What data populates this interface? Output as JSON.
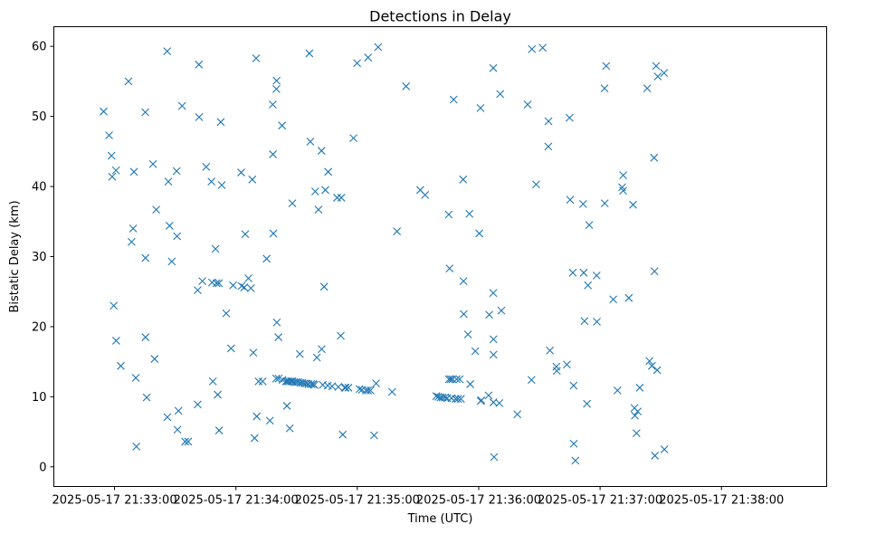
{
  "chart_data": {
    "type": "scatter",
    "title": "Detections in Delay",
    "xlabel": "Time (UTC)",
    "ylabel": "Bistatic Delay (km)",
    "marker": "x",
    "color": "#1f77b4",
    "xlim": [
      -30,
      352
    ],
    "ylim": [
      -2.8,
      62.8
    ],
    "x_unit": "seconds after 2025-05-17 21:33:00",
    "xticks": [
      {
        "value": 0,
        "label": "2025-05-17 21:33:00"
      },
      {
        "value": 60,
        "label": "2025-05-17 21:34:00"
      },
      {
        "value": 120,
        "label": "2025-05-17 21:35:00"
      },
      {
        "value": 180,
        "label": "2025-05-17 21:36:00"
      },
      {
        "value": 240,
        "label": "2025-05-17 21:37:00"
      },
      {
        "value": 300,
        "label": "2025-05-17 21:38:00"
      }
    ],
    "yticks": [
      {
        "value": 0,
        "label": "0"
      },
      {
        "value": 10,
        "label": "10"
      },
      {
        "value": 20,
        "label": "20"
      },
      {
        "value": 30,
        "label": "30"
      },
      {
        "value": 40,
        "label": "40"
      },
      {
        "value": 50,
        "label": "50"
      },
      {
        "value": 60,
        "label": "60"
      }
    ],
    "points": [
      [
        -5.4,
        50.7
      ],
      [
        -2.7,
        47.3
      ],
      [
        -1.5,
        44.4
      ],
      [
        -1.2,
        41.4
      ],
      [
        0.7,
        42.3
      ],
      [
        -0.4,
        23.0
      ],
      [
        0.8,
        18.0
      ],
      [
        3.1,
        14.4
      ],
      [
        6.9,
        55.0
      ],
      [
        8.4,
        32.1
      ],
      [
        9.2,
        34.0
      ],
      [
        9.6,
        42.1
      ],
      [
        10.5,
        12.7
      ],
      [
        10.8,
        2.9
      ],
      [
        15.2,
        50.6
      ],
      [
        15.3,
        29.8
      ],
      [
        15.3,
        18.5
      ],
      [
        15.9,
        9.9
      ],
      [
        19.0,
        43.2
      ],
      [
        19.8,
        15.4
      ],
      [
        20.6,
        36.7
      ],
      [
        26.0,
        59.3
      ],
      [
        26.1,
        7.1
      ],
      [
        26.6,
        40.7
      ],
      [
        27.2,
        34.4
      ],
      [
        28.3,
        29.3
      ],
      [
        30.7,
        42.2
      ],
      [
        30.9,
        32.9
      ],
      [
        31.1,
        5.3
      ],
      [
        31.6,
        8.0
      ],
      [
        33.4,
        51.5
      ],
      [
        34.9,
        3.6
      ],
      [
        36.4,
        3.6
      ],
      [
        41.1,
        8.9
      ],
      [
        41.1,
        25.2
      ],
      [
        41.8,
        49.9
      ],
      [
        41.7,
        57.4
      ],
      [
        43.4,
        26.5
      ],
      [
        45.3,
        42.8
      ],
      [
        47.9,
        40.7
      ],
      [
        48.2,
        26.3
      ],
      [
        48.6,
        12.2
      ],
      [
        49.9,
        31.1
      ],
      [
        50.4,
        26.2
      ],
      [
        51.0,
        10.3
      ],
      [
        51.6,
        26.2
      ],
      [
        51.7,
        5.2
      ],
      [
        52.5,
        49.2
      ],
      [
        53.0,
        40.2
      ],
      [
        55.2,
        21.9
      ],
      [
        57.6,
        16.9
      ],
      [
        58.6,
        25.9
      ],
      [
        62.6,
        42.0
      ],
      [
        62.8,
        25.8
      ],
      [
        64.1,
        25.6
      ],
      [
        64.6,
        33.2
      ],
      [
        66.2,
        26.9
      ],
      [
        67.4,
        25.5
      ],
      [
        68.1,
        41.0
      ],
      [
        68.6,
        16.3
      ],
      [
        69.2,
        4.1
      ],
      [
        70.0,
        58.3
      ],
      [
        70.3,
        7.2
      ],
      [
        71.2,
        12.2
      ],
      [
        73.2,
        12.2
      ],
      [
        75.2,
        29.7
      ],
      [
        76.8,
        6.6
      ],
      [
        78.5,
        33.3
      ],
      [
        78.2,
        51.7
      ],
      [
        78.3,
        44.6
      ],
      [
        80.1,
        55.1
      ],
      [
        80.0,
        53.9
      ],
      [
        80.2,
        20.6
      ],
      [
        81.0,
        18.5
      ],
      [
        79.9,
        12.6
      ],
      [
        81.1,
        12.6
      ],
      [
        82.8,
        48.7
      ],
      [
        83.0,
        12.4
      ],
      [
        84.7,
        12.2
      ],
      [
        85.4,
        12.2
      ],
      [
        85.2,
        8.7
      ],
      [
        86.2,
        12.2
      ],
      [
        86.6,
        5.5
      ],
      [
        87.2,
        12.2
      ],
      [
        87.9,
        37.6
      ],
      [
        87.9,
        12.2
      ],
      [
        88.8,
        12.1
      ],
      [
        89.8,
        12.1
      ],
      [
        90.8,
        12.1
      ],
      [
        91.6,
        16.1
      ],
      [
        91.8,
        12.0
      ],
      [
        92.8,
        12.0
      ],
      [
        93.8,
        11.9
      ],
      [
        94.8,
        11.9
      ],
      [
        95.8,
        11.8
      ],
      [
        96.3,
        59.0
      ],
      [
        96.8,
        46.4
      ],
      [
        97.2,
        11.8
      ],
      [
        98.2,
        11.8
      ],
      [
        98.8,
        11.7
      ],
      [
        99.2,
        39.3
      ],
      [
        100.0,
        15.6
      ],
      [
        100.8,
        36.7
      ],
      [
        102.3,
        45.1
      ],
      [
        102.4,
        16.8
      ],
      [
        102.9,
        11.7
      ],
      [
        103.6,
        25.7
      ],
      [
        104.2,
        39.5
      ],
      [
        105.4,
        11.6
      ],
      [
        105.6,
        42.1
      ],
      [
        107.5,
        11.5
      ],
      [
        110.0,
        38.4
      ],
      [
        110.6,
        11.4
      ],
      [
        112.1,
        38.4
      ],
      [
        111.8,
        18.7
      ],
      [
        112.8,
        4.6
      ],
      [
        113.8,
        11.3
      ],
      [
        114.2,
        11.3
      ],
      [
        115.6,
        11.3
      ],
      [
        118.1,
        46.9
      ],
      [
        119.9,
        57.6
      ],
      [
        121.1,
        11.1
      ],
      [
        122.3,
        11.0
      ],
      [
        124.3,
        10.9
      ],
      [
        125.3,
        10.9
      ],
      [
        125.3,
        58.4
      ],
      [
        126.5,
        10.9
      ],
      [
        128.3,
        4.5
      ],
      [
        129.3,
        11.9
      ],
      [
        130.3,
        59.9
      ],
      [
        137.2,
        10.7
      ],
      [
        139.6,
        33.6
      ],
      [
        144.1,
        54.3
      ],
      [
        151.1,
        39.5
      ],
      [
        153.5,
        38.8
      ],
      [
        159.0,
        10.1
      ],
      [
        160.0,
        10.0
      ],
      [
        161.1,
        9.9
      ],
      [
        162.2,
        9.9
      ],
      [
        163.4,
        9.9
      ],
      [
        164.4,
        9.8
      ],
      [
        165.2,
        36.0
      ],
      [
        165.3,
        12.5
      ],
      [
        165.6,
        28.3
      ],
      [
        166.6,
        9.8
      ],
      [
        166.2,
        12.5
      ],
      [
        167.1,
        12.5
      ],
      [
        167.6,
        52.4
      ],
      [
        168.6,
        9.7
      ],
      [
        169.1,
        12.5
      ],
      [
        169.8,
        9.7
      ],
      [
        170.6,
        12.5
      ],
      [
        171.2,
        9.7
      ],
      [
        172.3,
        41.0
      ],
      [
        172.5,
        26.5
      ],
      [
        172.6,
        21.8
      ],
      [
        174.7,
        18.9
      ],
      [
        175.4,
        36.1
      ],
      [
        175.8,
        11.8
      ],
      [
        178.3,
        16.5
      ],
      [
        180.3,
        33.3
      ],
      [
        180.9,
        51.2
      ],
      [
        181.0,
        9.4
      ],
      [
        181.3,
        9.5
      ],
      [
        184.9,
        10.2
      ],
      [
        185.2,
        21.7
      ],
      [
        187.2,
        56.9
      ],
      [
        187.2,
        24.8
      ],
      [
        187.3,
        18.2
      ],
      [
        187.3,
        16.0
      ],
      [
        187.3,
        9.2
      ],
      [
        187.6,
        1.4
      ],
      [
        190.2,
        9.1
      ],
      [
        190.6,
        53.2
      ],
      [
        191.2,
        22.3
      ],
      [
        199.1,
        7.5
      ],
      [
        204.2,
        51.7
      ],
      [
        206.1,
        12.4
      ],
      [
        206.3,
        59.6
      ],
      [
        208.4,
        40.3
      ],
      [
        211.6,
        59.8
      ],
      [
        214.5,
        49.3
      ],
      [
        214.4,
        45.7
      ],
      [
        215.2,
        16.6
      ],
      [
        218.4,
        14.3
      ],
      [
        218.6,
        13.7
      ],
      [
        223.6,
        14.6
      ],
      [
        224.9,
        49.8
      ],
      [
        225.2,
        38.1
      ],
      [
        226.5,
        27.7
      ],
      [
        226.9,
        11.6
      ],
      [
        227.0,
        3.3
      ],
      [
        227.8,
        0.9
      ],
      [
        231.6,
        37.5
      ],
      [
        231.9,
        27.7
      ],
      [
        232.3,
        20.8
      ],
      [
        233.5,
        9.0
      ],
      [
        234.0,
        25.9
      ],
      [
        234.6,
        34.5
      ],
      [
        238.3,
        27.3
      ],
      [
        238.4,
        20.7
      ],
      [
        242.2,
        54.0
      ],
      [
        242.3,
        37.6
      ],
      [
        243.0,
        57.2
      ],
      [
        246.5,
        23.9
      ],
      [
        248.6,
        10.9
      ],
      [
        250.9,
        39.9
      ],
      [
        251.4,
        39.4
      ],
      [
        251.4,
        41.6
      ],
      [
        254.2,
        24.1
      ],
      [
        256.3,
        37.4
      ],
      [
        257.0,
        8.4
      ],
      [
        257.2,
        7.3
      ],
      [
        258.0,
        4.8
      ],
      [
        258.6,
        7.9
      ],
      [
        259.6,
        11.3
      ],
      [
        263.3,
        54.0
      ],
      [
        264.4,
        15.1
      ],
      [
        265.6,
        14.4
      ],
      [
        266.7,
        44.1
      ],
      [
        266.9,
        27.9
      ],
      [
        267.1,
        1.6
      ],
      [
        267.7,
        57.2
      ],
      [
        268.2,
        13.8
      ],
      [
        268.5,
        55.7
      ],
      [
        271.6,
        56.2
      ],
      [
        271.8,
        2.5
      ]
    ]
  }
}
